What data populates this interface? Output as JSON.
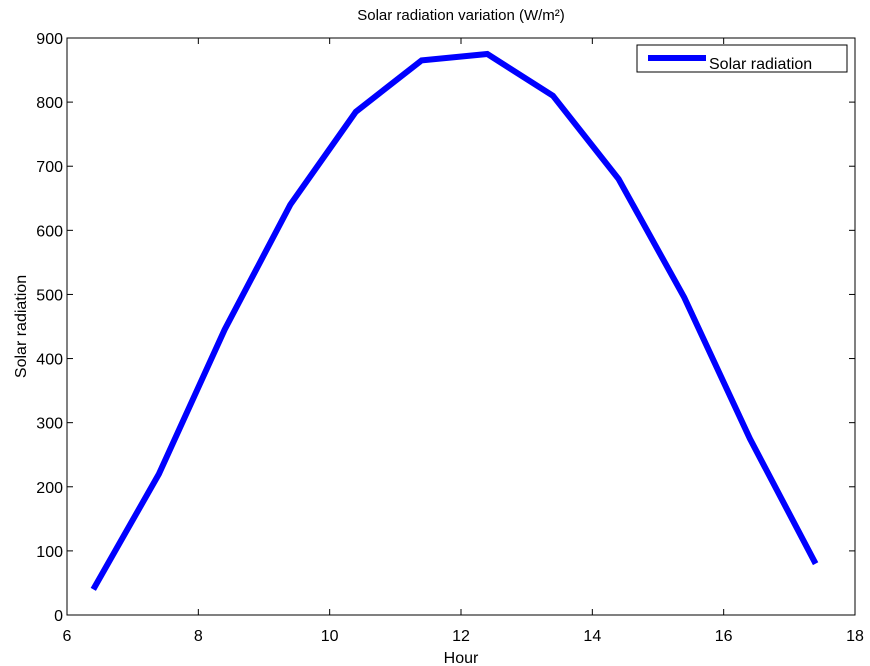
{
  "chart_data": {
    "type": "line",
    "title": "Solar radiation variation (W/m²)",
    "xlabel": "Hour",
    "ylabel": "Solar radiation",
    "xlim": [
      6,
      18
    ],
    "ylim": [
      0,
      900
    ],
    "xticks": [
      6,
      8,
      10,
      12,
      14,
      16,
      18
    ],
    "yticks": [
      0,
      100,
      200,
      300,
      400,
      500,
      600,
      700,
      800,
      900
    ],
    "grid": false,
    "legend_position": "top-right",
    "series": [
      {
        "name": "Solar radiation",
        "color": "#0000ff",
        "x": [
          6.4,
          7.4,
          8.4,
          9.4,
          10.4,
          11.4,
          12.4,
          13.4,
          14.4,
          15.4,
          16.4,
          17.4
        ],
        "y": [
          40,
          220,
          445,
          640,
          785,
          865,
          875,
          810,
          680,
          495,
          275,
          80
        ]
      }
    ]
  }
}
